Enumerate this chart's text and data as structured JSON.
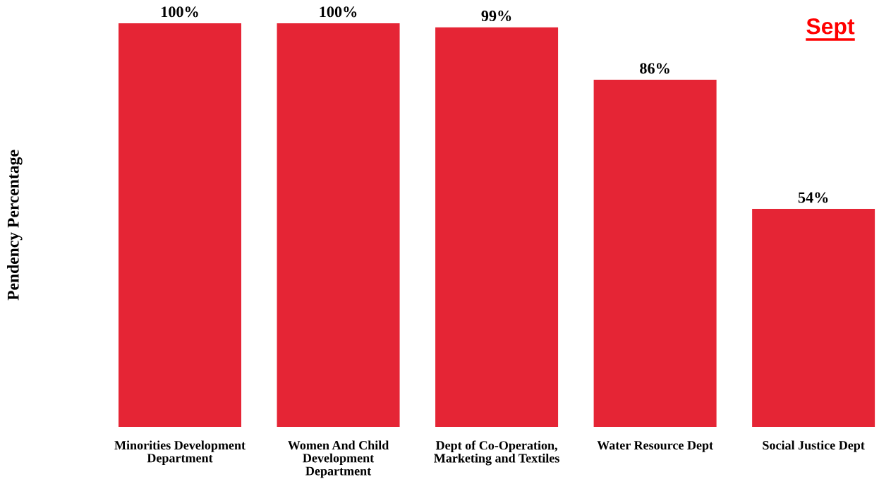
{
  "chart_data": {
    "type": "bar",
    "title": "Sept",
    "ylabel": "Pendency Percentage",
    "categories": [
      "Minorities Development\nDepartment",
      "Women And Child\nDevelopment\nDepartment",
      "Dept of Co-Operation,\nMarketing and Textiles",
      "Water Resource Dept",
      "Social Justice Dept"
    ],
    "values": [
      100,
      100,
      99,
      86,
      54
    ],
    "color": "#e52535",
    "value_labels": [
      "100%",
      "100%",
      "99%",
      "86%",
      "54%"
    ]
  }
}
